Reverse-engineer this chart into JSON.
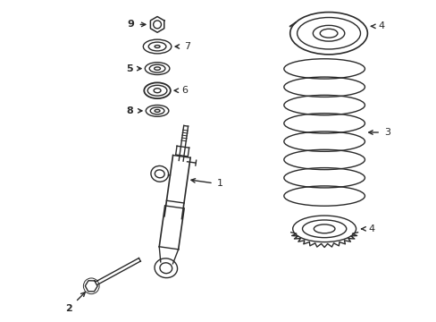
{
  "background_color": "#ffffff",
  "line_color": "#2a2a2a",
  "line_width": 1.0,
  "figsize": [
    4.89,
    3.6
  ],
  "dpi": 100,
  "parts": [
    "1",
    "2",
    "3",
    "4",
    "5",
    "6",
    "7",
    "8",
    "9"
  ]
}
